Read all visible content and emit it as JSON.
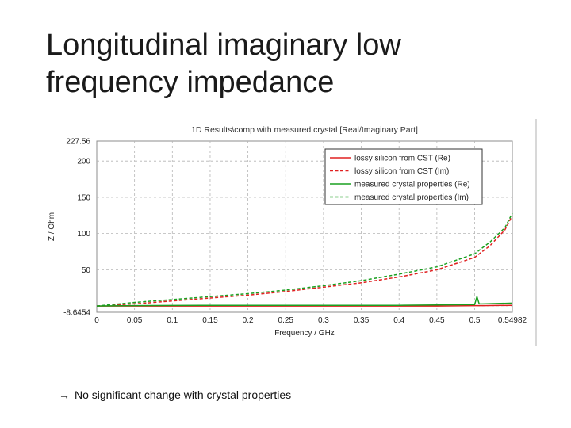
{
  "slide": {
    "title_line1": "Longitudinal imaginary low",
    "title_line2": "frequency impedance",
    "caption_arrow": "→",
    "caption": "No significant change with crystal properties"
  },
  "chart_data": {
    "type": "line",
    "title": "1D Results\\comp with measured crystal [Real/Imaginary Part]",
    "xlabel": "Frequency / GHz",
    "ylabel": "Z / Ohm",
    "xlim": [
      0,
      0.54982
    ],
    "ylim": [
      -8.6454,
      227.56
    ],
    "xticks": [
      0,
      0.05,
      0.1,
      0.15,
      0.2,
      0.25,
      0.3,
      0.35,
      0.4,
      0.45,
      0.5,
      0.54982
    ],
    "xtick_labels": [
      "0",
      "0.05",
      "0.1",
      "0.15",
      "0.2",
      "0.25",
      "0.3",
      "0.35",
      "0.4",
      "0.45",
      "0.5",
      "0.54982"
    ],
    "yticks": [
      -8.6454,
      50,
      100,
      150,
      200,
      227.56
    ],
    "ytick_labels": [
      "-8.6454",
      "50",
      "100",
      "150",
      "200",
      "227.56"
    ],
    "grid": true,
    "legend_position": "top-right",
    "series": [
      {
        "name": "lossy silicon from CST (Re)",
        "color": "#e02020",
        "dashed": false,
        "x": [
          0,
          0.05,
          0.1,
          0.15,
          0.2,
          0.25,
          0.3,
          0.35,
          0.4,
          0.45,
          0.5,
          0.51,
          0.54982
        ],
        "y": [
          0,
          0,
          0,
          0,
          0,
          0,
          0,
          0,
          0,
          0,
          0.5,
          0.5,
          1
        ]
      },
      {
        "name": "lossy silicon from CST (Im)",
        "color": "#e02020",
        "dashed": true,
        "x": [
          0,
          0.05,
          0.1,
          0.15,
          0.2,
          0.25,
          0.3,
          0.35,
          0.4,
          0.45,
          0.5,
          0.52,
          0.54,
          0.54982
        ],
        "y": [
          0,
          3,
          7,
          11,
          15,
          20,
          26,
          32,
          40,
          50,
          67,
          83,
          105,
          125
        ]
      },
      {
        "name": "measured crystal properties (Re)",
        "color": "#1aa020",
        "dashed": false,
        "x": [
          0,
          0.05,
          0.1,
          0.15,
          0.2,
          0.25,
          0.3,
          0.35,
          0.4,
          0.45,
          0.5,
          0.503,
          0.506,
          0.51,
          0.54982
        ],
        "y": [
          0,
          0.5,
          0.8,
          1,
          1,
          1,
          1,
          1,
          1,
          1.5,
          2,
          13,
          3,
          3,
          4
        ]
      },
      {
        "name": "measured crystal properties (Im)",
        "color": "#1aa020",
        "dashed": true,
        "x": [
          0,
          0.05,
          0.1,
          0.15,
          0.2,
          0.25,
          0.3,
          0.35,
          0.4,
          0.45,
          0.5,
          0.51,
          0.52,
          0.54,
          0.54982
        ],
        "y": [
          0,
          5,
          9,
          13,
          17,
          22,
          28,
          35,
          44,
          54,
          72,
          80,
          88,
          108,
          128
        ]
      }
    ]
  }
}
